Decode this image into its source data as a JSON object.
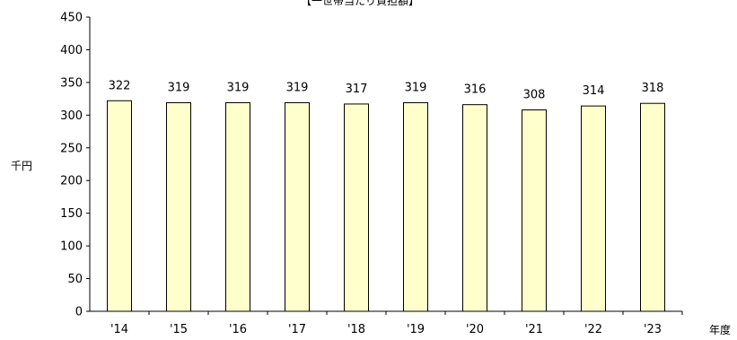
{
  "chart_data": {
    "type": "bar",
    "title": "【一世帯当たり負担額】",
    "ylabel": "千円",
    "xlabel": "年度",
    "categories": [
      "'14",
      "'15",
      "'16",
      "'17",
      "'18",
      "'19",
      "'20",
      "'21",
      "'22",
      "'23"
    ],
    "values": [
      322,
      319,
      319,
      319,
      317,
      319,
      316,
      308,
      314,
      318
    ],
    "ylim": [
      0,
      450
    ],
    "yticks": [
      0,
      50,
      100,
      150,
      200,
      250,
      300,
      350,
      400,
      450
    ],
    "grid": false,
    "legend": "none",
    "bar_fill": "#ffffcc",
    "bar_stroke": "#000000"
  }
}
